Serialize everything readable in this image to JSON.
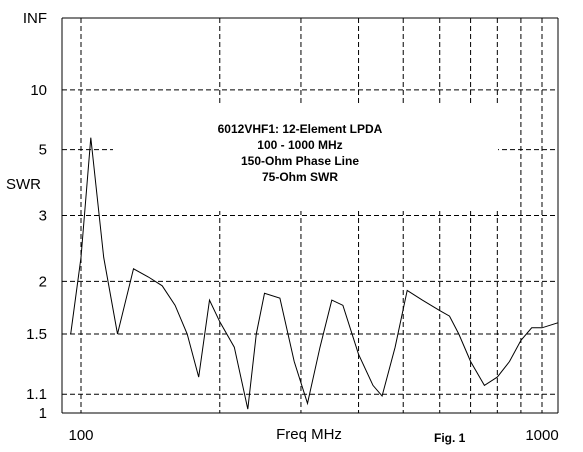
{
  "chart_data": {
    "type": "line",
    "title": "",
    "xlabel": "Freq MHz",
    "ylabel": "SWR",
    "x_scale": "log",
    "y_scale": "reflection-coefficient",
    "xlim": [
      100,
      1000
    ],
    "ylim": [
      1,
      "INF"
    ],
    "x_tick_labels": [
      "100",
      "1000"
    ],
    "x_ticks": [
      100,
      1000
    ],
    "y_tick_labels": [
      "1",
      "1.1",
      "1.5",
      "2",
      "3",
      "5",
      "10",
      "INF"
    ],
    "y_ticks": [
      1,
      1.1,
      1.5,
      2,
      3,
      5,
      10,
      "INF"
    ],
    "grid": true,
    "annotation": [
      "6012VHF1:  12-Element LPDA",
      "100 - 1000 MHz",
      "150-Ohm Phase Line",
      "75-Ohm SWR"
    ],
    "figure_label": "Fig. 1",
    "series": [
      {
        "x": [
          95,
          100,
          105,
          112,
          120,
          130,
          140,
          150,
          160,
          170,
          180,
          190,
          200,
          215,
          230,
          240,
          250,
          270,
          290,
          310,
          330,
          350,
          370,
          400,
          430,
          450,
          480,
          510,
          550,
          600,
          630,
          660,
          700,
          750,
          800,
          850,
          900,
          950,
          1000,
          1100
        ],
        "y": [
          1.5,
          2.3,
          5.6,
          2.3,
          1.5,
          2.15,
          2.05,
          1.95,
          1.75,
          1.5,
          1.2,
          1.8,
          1.6,
          1.4,
          1.02,
          1.5,
          1.87,
          1.82,
          1.3,
          1.05,
          1.4,
          1.8,
          1.75,
          1.35,
          1.15,
          1.09,
          1.4,
          1.9,
          1.8,
          1.7,
          1.65,
          1.5,
          1.3,
          1.15,
          1.2,
          1.3,
          1.45,
          1.55,
          1.55,
          1.6
        ]
      }
    ]
  }
}
